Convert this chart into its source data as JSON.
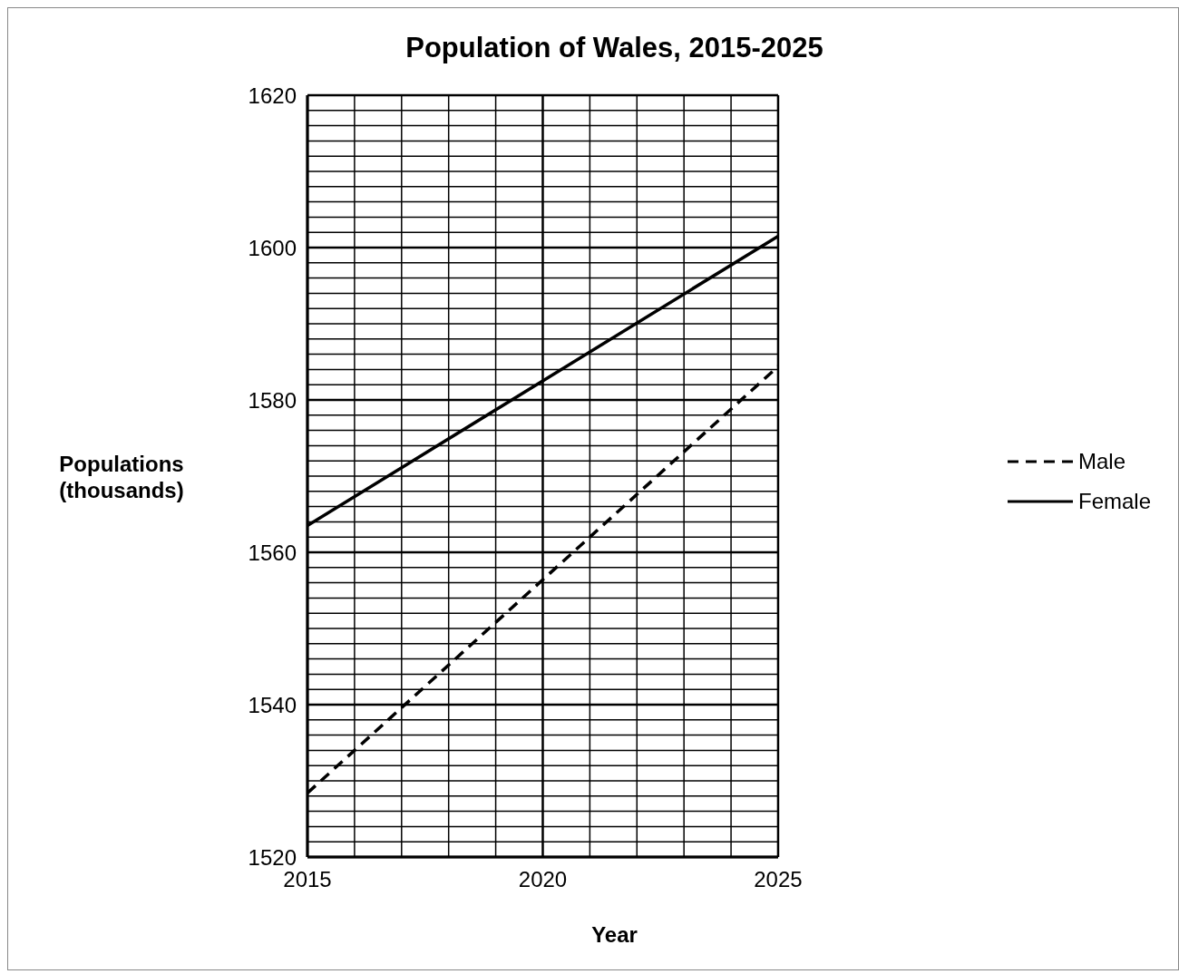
{
  "chart_data": {
    "type": "line",
    "title": "Population of Wales, 2015-2025",
    "xlabel": "Year",
    "ylabel": "Populations (thousands)",
    "x": [
      2015,
      2020,
      2025
    ],
    "series": [
      {
        "name": "Male",
        "color": "#000000",
        "line_style": "dashed",
        "values": [
          1528.4,
          1556.4,
          1584.4
        ]
      },
      {
        "name": "Female",
        "color": "#000000",
        "line_style": "solid",
        "values": [
          1563.5,
          1582.5,
          1601.5
        ]
      }
    ],
    "xlim": [
      2015,
      2025
    ],
    "xticks": [
      2015,
      {
        "value": 2016,
        "label": null
      },
      {
        "value": 2017,
        "label": null
      },
      {
        "value": 2018,
        "label": null
      },
      {
        "value": 2019,
        "label": null
      },
      2020,
      {
        "value": 2021,
        "label": null
      },
      {
        "value": 2022,
        "label": null
      },
      {
        "value": 2023,
        "label": null
      },
      {
        "value": 2024,
        "label": null
      },
      2025
    ],
    "ylim": [
      1520,
      1620
    ],
    "yticks": [
      1520,
      {
        "value": 1522,
        "label": null
      },
      {
        "value": 1524,
        "label": null
      },
      {
        "value": 1526,
        "label": null
      },
      {
        "value": 1528,
        "label": null
      },
      {
        "value": 1530,
        "label": null
      },
      {
        "value": 1532,
        "label": null
      },
      {
        "value": 1534,
        "label": null
      },
      {
        "value": 1536,
        "label": null
      },
      {
        "value": 1538,
        "label": null
      },
      1540,
      {
        "value": 1542,
        "label": null
      },
      {
        "value": 1544,
        "label": null
      },
      {
        "value": 1546,
        "label": null
      },
      {
        "value": 1548,
        "label": null
      },
      {
        "value": 1550,
        "label": null
      },
      {
        "value": 1552,
        "label": null
      },
      {
        "value": 1554,
        "label": null
      },
      {
        "value": 1556,
        "label": null
      },
      {
        "value": 1558,
        "label": null
      },
      1560,
      {
        "value": 1562,
        "label": null
      },
      {
        "value": 1564,
        "label": null
      },
      {
        "value": 1566,
        "label": null
      },
      {
        "value": 1568,
        "label": null
      },
      {
        "value": 1570,
        "label": null
      },
      {
        "value": 1572,
        "label": null
      },
      {
        "value": 1574,
        "label": null
      },
      {
        "value": 1576,
        "label": null
      },
      {
        "value": 1578,
        "label": null
      },
      1580,
      {
        "value": 1582,
        "label": null
      },
      {
        "value": 1584,
        "label": null
      },
      {
        "value": 1586,
        "label": null
      },
      {
        "value": 1588,
        "label": null
      },
      {
        "value": 1590,
        "label": null
      },
      {
        "value": 1592,
        "label": null
      },
      {
        "value": 1594,
        "label": null
      },
      {
        "value": 1596,
        "label": null
      },
      {
        "value": 1598,
        "label": null
      },
      1600,
      {
        "value": 1602,
        "label": null
      },
      {
        "value": 1604,
        "label": null
      },
      {
        "value": 1606,
        "label": null
      },
      {
        "value": 1608,
        "label": null
      },
      {
        "value": 1610,
        "label": null
      },
      {
        "value": 1612,
        "label": null
      },
      {
        "value": 1614,
        "label": null
      },
      {
        "value": 1616,
        "label": null
      },
      {
        "value": 1618,
        "label": null
      },
      1620
    ],
    "grid": true,
    "legend": "right",
    "marker": "none"
  }
}
